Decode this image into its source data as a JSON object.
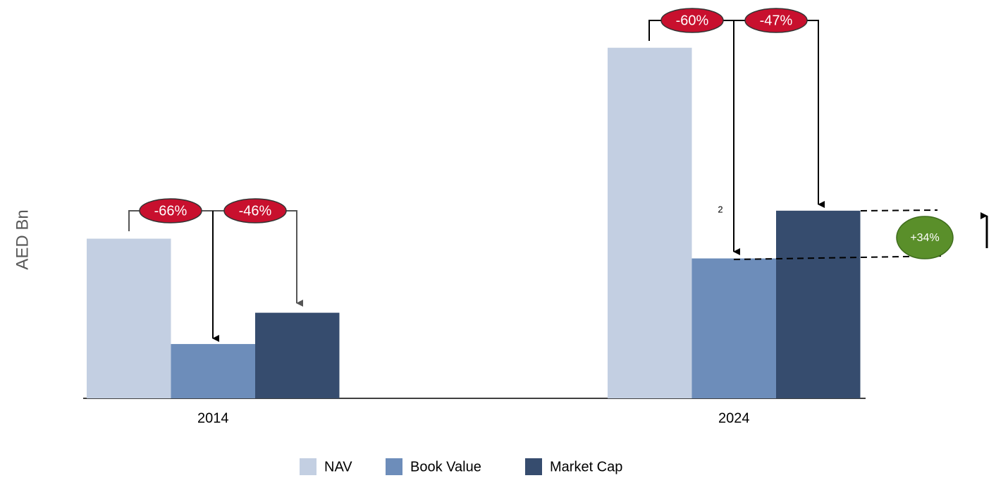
{
  "chart_data": {
    "type": "bar",
    "y_label": "AED Bn",
    "categories": [
      "2014",
      "2024"
    ],
    "series": [
      {
        "name": "NAV",
        "color": "#c3cfe2",
        "values": [
          97,
          213
        ]
      },
      {
        "name": "Book Value",
        "color": "#6d8dba",
        "values": [
          33,
          85
        ]
      },
      {
        "name": "Market Cap",
        "color": "#364c6e",
        "values": [
          52,
          114
        ]
      }
    ],
    "ylim": [
      0,
      242
    ],
    "annotations": [
      "-66%",
      "-46%",
      "-60%",
      "-47%",
      "+34%",
      "2"
    ]
  }
}
